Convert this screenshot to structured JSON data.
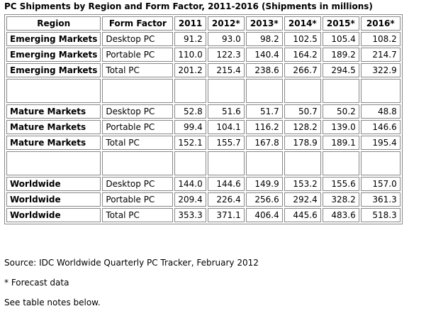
{
  "title": "PC Shipments by Region and Form Factor, 2011-2016 (Shipments in millions)",
  "table": {
    "header": [
      "Region",
      "Form Factor",
      "2011",
      "2012*",
      "2013*",
      "2014*",
      "2015*",
      "2016*"
    ],
    "groups": [
      {
        "rows": [
          [
            "Emerging Markets",
            "Desktop PC",
            "91.2",
            "93.0",
            "98.2",
            "102.5",
            "105.4",
            "108.2"
          ],
          [
            "Emerging Markets",
            "Portable PC",
            "110.0",
            "122.3",
            "140.4",
            "164.2",
            "189.2",
            "214.7"
          ],
          [
            "Emerging Markets",
            "Total PC",
            "201.2",
            "215.4",
            "238.6",
            "266.7",
            "294.5",
            "322.9"
          ]
        ]
      },
      {
        "rows": [
          [
            "Mature Markets",
            "Desktop PC",
            "52.8",
            "51.6",
            "51.7",
            "50.7",
            "50.2",
            "48.8"
          ],
          [
            "Mature Markets",
            "Portable PC",
            "99.4",
            "104.1",
            "116.2",
            "128.2",
            "139.0",
            "146.6"
          ],
          [
            "Mature Markets",
            "Total PC",
            "152.1",
            "155.7",
            "167.8",
            "178.9",
            "189.1",
            "195.4"
          ]
        ]
      },
      {
        "rows": [
          [
            "Worldwide",
            "Desktop PC",
            "144.0",
            "144.6",
            "149.9",
            "153.2",
            "155.6",
            "157.0"
          ],
          [
            "Worldwide",
            "Portable PC",
            "209.4",
            "226.4",
            "256.6",
            "292.4",
            "328.2",
            "361.3"
          ],
          [
            "Worldwide",
            "Total PC",
            "353.3",
            "371.1",
            "406.4",
            "445.6",
            "483.6",
            "518.3"
          ]
        ]
      }
    ]
  },
  "notes": [
    "Source: IDC Worldwide Quarterly PC Tracker, February 2012",
    "* Forecast data",
    "See table notes below."
  ]
}
